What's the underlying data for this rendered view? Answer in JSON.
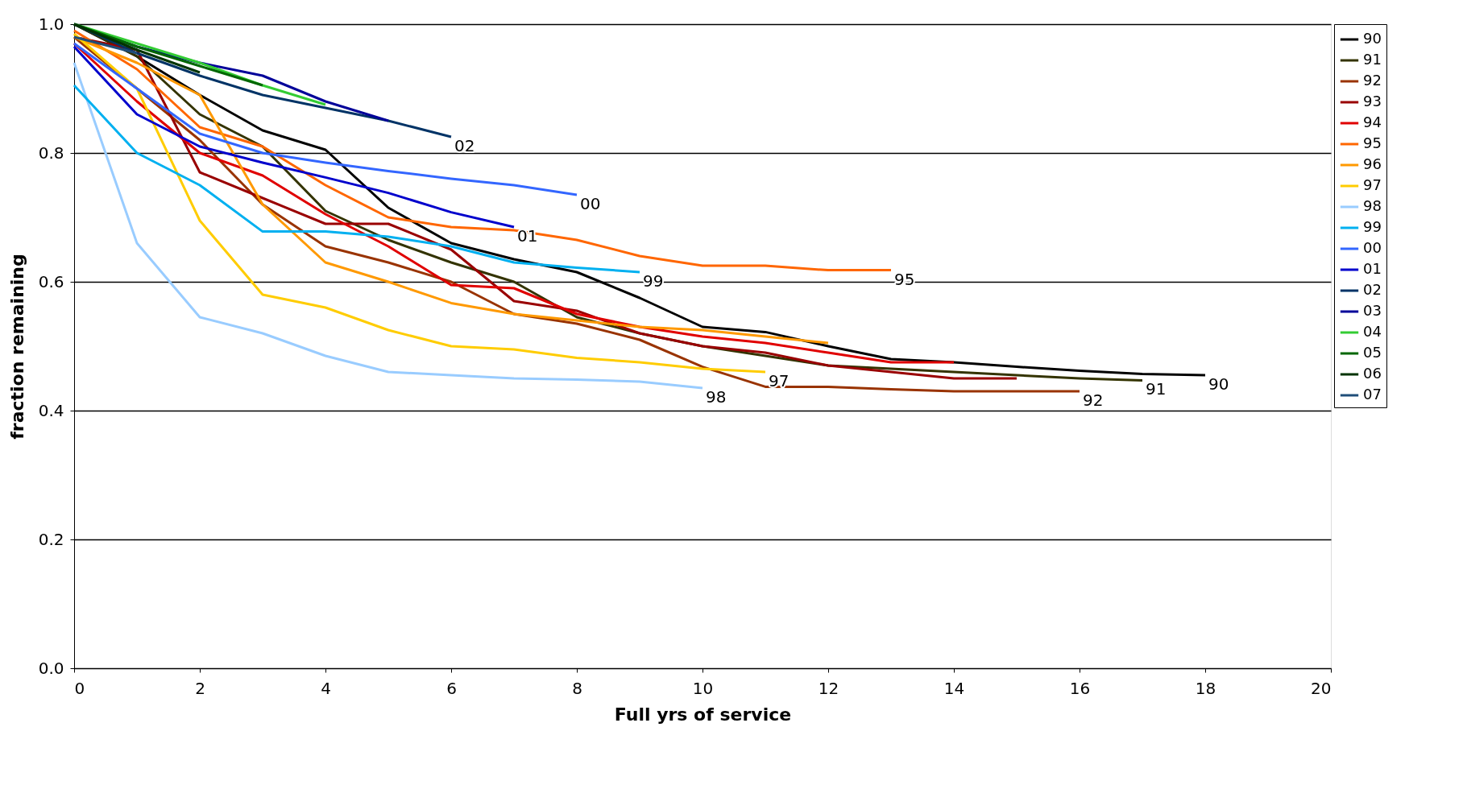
{
  "chart_data": {
    "type": "line",
    "xlabel": "Full yrs of service",
    "ylabel": "fraction remaining",
    "xlim": [
      0,
      20
    ],
    "xticks": [
      0,
      2,
      4,
      6,
      8,
      10,
      12,
      14,
      16,
      18,
      20
    ],
    "ylim": [
      0,
      1
    ],
    "yticks": [
      {
        "value": 0,
        "label": "0.0"
      },
      0.2,
      0.4,
      0.6,
      0.8,
      {
        "value": 1,
        "label": "1.0"
      }
    ],
    "grid": "y",
    "legend": "top right",
    "line_style": "solid",
    "marker": "none",
    "series": [
      {
        "name": "90",
        "color": "#000000",
        "x": [
          0,
          1,
          2,
          3,
          4,
          5,
          6,
          7,
          8,
          9,
          10,
          11,
          12,
          13,
          14,
          15,
          16,
          17,
          18
        ],
        "values": [
          1.0,
          0.95,
          0.89,
          0.835,
          0.805,
          0.715,
          0.66,
          0.635,
          0.615,
          0.575,
          0.53,
          0.522,
          0.5,
          0.48,
          0.475,
          0.468,
          0.462,
          0.457,
          0.455
        ]
      },
      {
        "name": "91",
        "color": "#333300",
        "x": [
          0,
          1,
          2,
          3,
          4,
          5,
          6,
          7,
          8,
          9,
          10,
          11,
          12,
          13,
          14,
          15,
          16,
          17
        ],
        "values": [
          1.0,
          0.95,
          0.86,
          0.81,
          0.71,
          0.665,
          0.63,
          0.6,
          0.545,
          0.52,
          0.5,
          0.485,
          0.47,
          0.465,
          0.46,
          0.455,
          0.45,
          0.447
        ]
      },
      {
        "name": "92",
        "color": "#993300",
        "x": [
          0,
          1,
          2,
          3,
          4,
          5,
          6,
          7,
          8,
          9,
          10,
          11,
          12,
          13,
          14,
          15,
          16
        ],
        "values": [
          0.98,
          0.9,
          0.82,
          0.72,
          0.655,
          0.63,
          0.6,
          0.55,
          0.535,
          0.51,
          0.468,
          0.437,
          0.437,
          0.433,
          0.43,
          0.43,
          0.43
        ]
      },
      {
        "name": "93",
        "color": "#990000",
        "x": [
          0,
          1,
          2,
          3,
          4,
          5,
          6,
          7,
          8,
          9,
          10,
          11,
          12,
          13,
          14,
          15
        ],
        "values": [
          0.98,
          0.96,
          0.77,
          0.73,
          0.69,
          0.69,
          0.65,
          0.57,
          0.555,
          0.52,
          0.5,
          0.49,
          0.47,
          0.46,
          0.45,
          0.45
        ]
      },
      {
        "name": "94",
        "color": "#e00000",
        "x": [
          0,
          1,
          2,
          3,
          4,
          5,
          6,
          7,
          8,
          9,
          10,
          11,
          12,
          13,
          14
        ],
        "values": [
          0.97,
          0.88,
          0.8,
          0.765,
          0.705,
          0.655,
          0.595,
          0.59,
          0.55,
          0.53,
          0.515,
          0.505,
          0.49,
          0.475,
          0.475
        ]
      },
      {
        "name": "95",
        "color": "#ff6600",
        "x": [
          0,
          1,
          2,
          3,
          4,
          5,
          6,
          7,
          8,
          9,
          10,
          11,
          12,
          13
        ],
        "values": [
          0.99,
          0.93,
          0.84,
          0.81,
          0.75,
          0.7,
          0.685,
          0.68,
          0.665,
          0.64,
          0.625,
          0.625,
          0.618,
          0.618
        ]
      },
      {
        "name": "96",
        "color": "#ff9900",
        "x": [
          0,
          1,
          2,
          3,
          4,
          5,
          6,
          7,
          8,
          9,
          10,
          11,
          12
        ],
        "values": [
          0.98,
          0.94,
          0.89,
          0.72,
          0.63,
          0.6,
          0.567,
          0.55,
          0.54,
          0.53,
          0.525,
          0.515,
          0.505
        ]
      },
      {
        "name": "97",
        "color": "#ffcc00",
        "x": [
          0,
          1,
          2,
          3,
          4,
          5,
          6,
          7,
          8,
          9,
          10,
          11
        ],
        "values": [
          0.985,
          0.9,
          0.695,
          0.58,
          0.56,
          0.525,
          0.5,
          0.495,
          0.482,
          0.475,
          0.465,
          0.46
        ]
      },
      {
        "name": "98",
        "color": "#99ccff",
        "x": [
          0,
          1,
          2,
          3,
          4,
          5,
          6,
          7,
          8,
          9,
          10
        ],
        "values": [
          0.94,
          0.66,
          0.545,
          0.52,
          0.485,
          0.46,
          0.455,
          0.45,
          0.448,
          0.445,
          0.435
        ]
      },
      {
        "name": "99",
        "color": "#00b0f0",
        "x": [
          0,
          1,
          2,
          3,
          4,
          5,
          6,
          7,
          8,
          9
        ],
        "values": [
          0.905,
          0.8,
          0.75,
          0.678,
          0.678,
          0.67,
          0.655,
          0.63,
          0.622,
          0.615
        ]
      },
      {
        "name": "00",
        "color": "#3366ff",
        "x": [
          0,
          1,
          2,
          3,
          4,
          5,
          6,
          7,
          8
        ],
        "values": [
          0.97,
          0.9,
          0.83,
          0.8,
          0.785,
          0.772,
          0.76,
          0.75,
          0.735
        ]
      },
      {
        "name": "01",
        "color": "#0000cc",
        "x": [
          0,
          1,
          2,
          3,
          4,
          5,
          6,
          7
        ],
        "values": [
          0.965,
          0.86,
          0.81,
          0.785,
          0.762,
          0.738,
          0.708,
          0.685
        ]
      },
      {
        "name": "02",
        "color": "#003366",
        "x": [
          0,
          1,
          2,
          3,
          4,
          5,
          6
        ],
        "values": [
          1.0,
          0.955,
          0.92,
          0.89,
          0.87,
          0.85,
          0.825
        ]
      },
      {
        "name": "03",
        "color": "#000099",
        "x": [
          0,
          1,
          2,
          3,
          4,
          5
        ],
        "values": [
          1.0,
          0.965,
          0.94,
          0.92,
          0.88,
          0.85
        ]
      },
      {
        "name": "04",
        "color": "#33cc33",
        "x": [
          0,
          1,
          2,
          3,
          4
        ],
        "values": [
          1.0,
          0.97,
          0.94,
          0.905,
          0.875
        ]
      },
      {
        "name": "05",
        "color": "#006600",
        "x": [
          0,
          1,
          2,
          3
        ],
        "values": [
          1.0,
          0.965,
          0.935,
          0.905
        ]
      },
      {
        "name": "06",
        "color": "#003300",
        "x": [
          0,
          1,
          2
        ],
        "values": [
          1.0,
          0.96,
          0.925
        ]
      },
      {
        "name": "07",
        "color": "#1f4e79",
        "x": [
          0,
          1
        ],
        "values": [
          0.98,
          0.955
        ]
      }
    ],
    "annotations": [
      {
        "text": "02",
        "x": 6,
        "y": 0.825
      },
      {
        "text": "00",
        "x": 8,
        "y": 0.735
      },
      {
        "text": "01",
        "x": 7,
        "y": 0.685
      },
      {
        "text": "99",
        "x": 9,
        "y": 0.615
      },
      {
        "text": "95",
        "x": 13,
        "y": 0.618
      },
      {
        "text": "97",
        "x": 11,
        "y": 0.46
      },
      {
        "text": "98",
        "x": 10,
        "y": 0.435
      },
      {
        "text": "92",
        "x": 16,
        "y": 0.43
      },
      {
        "text": "91",
        "x": 17,
        "y": 0.447
      },
      {
        "text": "90",
        "x": 18,
        "y": 0.455
      }
    ]
  }
}
